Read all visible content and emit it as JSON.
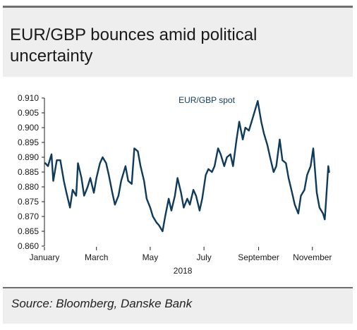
{
  "title": "EUR/GBP bounces amid political uncertainty",
  "source": "Source: Bloomberg, Danske Bank",
  "colors": {
    "line": "#0e3a5c",
    "header_bg": "#eeeeee",
    "rule": "#6f6f6f"
  },
  "chart_data": {
    "type": "line",
    "title": "EUR/GBP bounces amid political uncertainty",
    "xlabel": "2018",
    "ylabel": "",
    "ylim": [
      0.86,
      0.91
    ],
    "yticks": [
      "0.910",
      "0.905",
      "0.900",
      "0.895",
      "0.890",
      "0.885",
      "0.880",
      "0.875",
      "0.870",
      "0.865",
      "0.860"
    ],
    "xticks": [
      "January",
      "March",
      "May",
      "July",
      "September",
      "November"
    ],
    "grid": false,
    "legend": "top-center",
    "series": [
      {
        "name": "EUR/GBP spot",
        "x": [
          "2018-01-02",
          "2018-01-05",
          "2018-01-09",
          "2018-01-11",
          "2018-01-15",
          "2018-01-19",
          "2018-01-23",
          "2018-01-26",
          "2018-01-30",
          "2018-02-02",
          "2018-02-06",
          "2018-02-08",
          "2018-02-12",
          "2018-02-15",
          "2018-02-19",
          "2018-02-22",
          "2018-02-26",
          "2018-03-01",
          "2018-03-05",
          "2018-03-08",
          "2018-03-12",
          "2018-03-15",
          "2018-03-19",
          "2018-03-22",
          "2018-03-26",
          "2018-03-29",
          "2018-04-03",
          "2018-04-06",
          "2018-04-10",
          "2018-04-13",
          "2018-04-17",
          "2018-04-20",
          "2018-04-24",
          "2018-04-27",
          "2018-05-01",
          "2018-05-04",
          "2018-05-08",
          "2018-05-11",
          "2018-05-15",
          "2018-05-18",
          "2018-05-22",
          "2018-05-25",
          "2018-05-29",
          "2018-06-01",
          "2018-06-05",
          "2018-06-08",
          "2018-06-12",
          "2018-06-15",
          "2018-06-19",
          "2018-06-22",
          "2018-06-26",
          "2018-06-29",
          "2018-07-03",
          "2018-07-06",
          "2018-07-10",
          "2018-07-13",
          "2018-07-17",
          "2018-07-20",
          "2018-07-24",
          "2018-07-27",
          "2018-07-31",
          "2018-08-03",
          "2018-08-07",
          "2018-08-10",
          "2018-08-14",
          "2018-08-17",
          "2018-08-21",
          "2018-08-24",
          "2018-08-28",
          "2018-08-31",
          "2018-09-04",
          "2018-09-07",
          "2018-09-11",
          "2018-09-14",
          "2018-09-18",
          "2018-09-21",
          "2018-09-25",
          "2018-09-28",
          "2018-10-02",
          "2018-10-05",
          "2018-10-09",
          "2018-10-12",
          "2018-10-16",
          "2018-10-19",
          "2018-10-23",
          "2018-10-26",
          "2018-10-30",
          "2018-11-02",
          "2018-11-06",
          "2018-11-09",
          "2018-11-13",
          "2018-11-15",
          "2018-11-16",
          "2018-11-19",
          "2018-11-20"
        ],
        "values": [
          0.888,
          0.887,
          0.891,
          0.882,
          0.889,
          0.889,
          0.882,
          0.878,
          0.873,
          0.879,
          0.877,
          0.888,
          0.883,
          0.877,
          0.88,
          0.883,
          0.878,
          0.883,
          0.888,
          0.89,
          0.888,
          0.884,
          0.878,
          0.874,
          0.877,
          0.882,
          0.887,
          0.882,
          0.881,
          0.893,
          0.892,
          0.887,
          0.882,
          0.876,
          0.873,
          0.87,
          0.868,
          0.867,
          0.865,
          0.87,
          0.876,
          0.872,
          0.877,
          0.883,
          0.878,
          0.873,
          0.876,
          0.874,
          0.879,
          0.877,
          0.872,
          0.876,
          0.884,
          0.886,
          0.885,
          0.887,
          0.893,
          0.891,
          0.887,
          0.89,
          0.891,
          0.887,
          0.896,
          0.902,
          0.896,
          0.9,
          0.899,
          0.902,
          0.906,
          0.909,
          0.902,
          0.898,
          0.894,
          0.89,
          0.885,
          0.887,
          0.896,
          0.889,
          0.888,
          0.883,
          0.878,
          0.874,
          0.871,
          0.877,
          0.879,
          0.884,
          0.887,
          0.893,
          0.878,
          0.873,
          0.871,
          0.869,
          0.873,
          0.887,
          0.885
        ]
      }
    ]
  }
}
